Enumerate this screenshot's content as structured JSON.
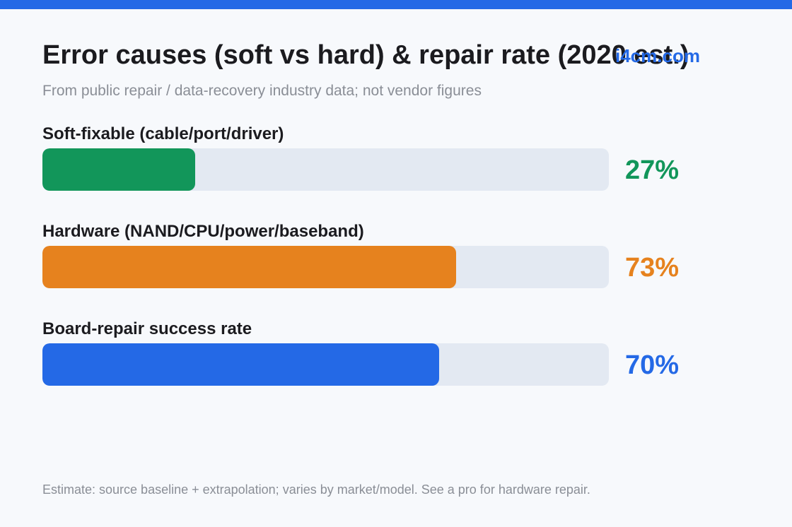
{
  "title": "Error causes (soft vs hard) & repair rate (2020 est.)",
  "watermark": "i4cm.com",
  "subtitle": "From public repair / data-recovery industry data; not vendor figures",
  "footnote": "Estimate: source baseline + extrapolation; varies by market/model. See a pro for hardware repair.",
  "colors": {
    "accent": "#2469e6",
    "track": "#e3e9f2"
  },
  "chart_data": {
    "type": "bar",
    "orientation": "horizontal",
    "title": "Error causes (soft vs hard) & repair rate (2020 est.)",
    "subtitle": "From public repair / data-recovery industry data; not vendor figures",
    "unit": "%",
    "xlim": [
      0,
      100
    ],
    "grid": false,
    "categories": [
      "Soft-fixable (cable/port/driver)",
      "Hardware (NAND/CPU/power/baseband)",
      "Board-repair success rate"
    ],
    "values": [
      27,
      73,
      70
    ],
    "value_labels": [
      "27%",
      "73%",
      "70%"
    ],
    "colors": [
      "#12965a",
      "#e6821e",
      "#2469e6"
    ]
  }
}
